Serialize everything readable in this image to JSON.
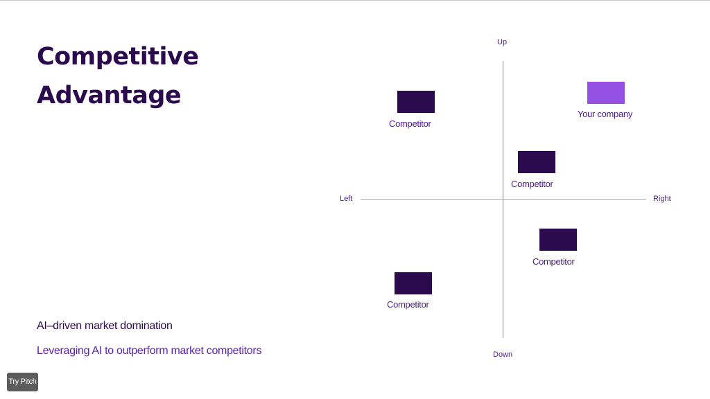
{
  "slide": {
    "title_lines": [
      "Competitive",
      "Advantage"
    ],
    "subtitle": "AI–driven market domination",
    "tagline": "Leveraging AI to outperform market competitors",
    "badge": "Try Pitch"
  },
  "axes": {
    "up": "Up",
    "down": "Down",
    "left": "Left",
    "right": "Right"
  },
  "markers": [
    {
      "label": "Competitor",
      "color": "#2b0a4e"
    },
    {
      "label": "Your company",
      "color": "#9450e0"
    },
    {
      "label": "Competitor",
      "color": "#2b0a4e"
    },
    {
      "label": "Competitor",
      "color": "#2b0a4e"
    },
    {
      "label": "Competitor",
      "color": "#2b0a4e"
    }
  ],
  "colors": {
    "primary": "#2b0a4e",
    "accent": "#9450e0",
    "axis": "#8e6fd8"
  }
}
